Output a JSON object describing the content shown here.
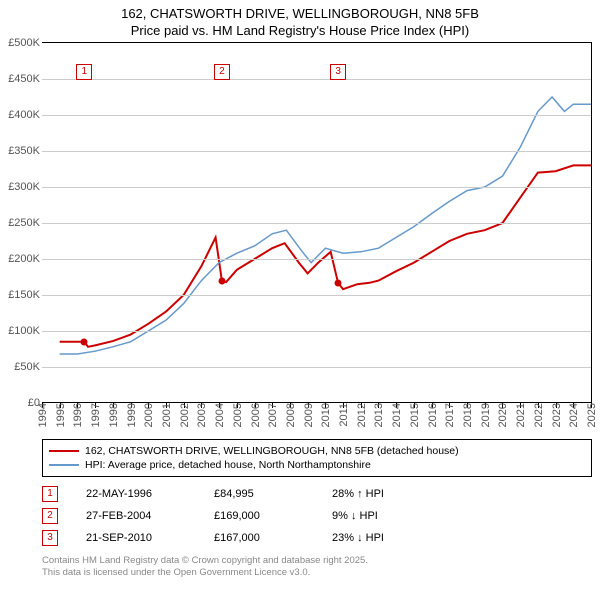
{
  "title_line1": "162, CHATSWORTH DRIVE, WELLINGBOROUGH, NN8 5FB",
  "title_line2": "Price paid vs. HM Land Registry's House Price Index (HPI)",
  "chart": {
    "type": "line",
    "background_color": "#ffffff",
    "grid_color": "#cccccc",
    "y": {
      "min": 0,
      "max": 500000,
      "ticks": [
        0,
        50000,
        100000,
        150000,
        200000,
        250000,
        300000,
        350000,
        400000,
        450000,
        500000
      ],
      "labels": [
        "£0",
        "£50K",
        "£100K",
        "£150K",
        "£200K",
        "£250K",
        "£300K",
        "£350K",
        "£400K",
        "£450K",
        "£500K"
      ],
      "label_fontsize": 11
    },
    "x": {
      "min": 1994,
      "max": 2025,
      "ticks": [
        1994,
        1995,
        1996,
        1997,
        1998,
        1999,
        2000,
        2001,
        2002,
        2003,
        2004,
        2005,
        2006,
        2007,
        2008,
        2009,
        2010,
        2011,
        2012,
        2013,
        2014,
        2015,
        2016,
        2017,
        2018,
        2019,
        2020,
        2021,
        2022,
        2023,
        2024,
        2025
      ],
      "label_fontsize": 11
    },
    "series": [
      {
        "name": "price_paid",
        "label": "162, CHATSWORTH DRIVE, WELLINGBOROUGH, NN8 5FB (detached house)",
        "color": "#cd0000",
        "line_width": 2,
        "data": [
          [
            1995.0,
            85000
          ],
          [
            1996.39,
            84995
          ],
          [
            1996.6,
            78000
          ],
          [
            1997.0,
            80000
          ],
          [
            1998.0,
            86000
          ],
          [
            1999.0,
            95000
          ],
          [
            2000.0,
            110000
          ],
          [
            2001.0,
            127000
          ],
          [
            2002.0,
            150000
          ],
          [
            2003.0,
            190000
          ],
          [
            2003.8,
            230000
          ],
          [
            2004.16,
            169000
          ],
          [
            2004.4,
            168000
          ],
          [
            2005.0,
            185000
          ],
          [
            2006.0,
            200000
          ],
          [
            2007.0,
            215000
          ],
          [
            2007.7,
            222000
          ],
          [
            2008.5,
            195000
          ],
          [
            2009.0,
            180000
          ],
          [
            2009.6,
            195000
          ],
          [
            2010.3,
            210000
          ],
          [
            2010.72,
            167000
          ],
          [
            2011.0,
            158000
          ],
          [
            2011.8,
            165000
          ],
          [
            2012.5,
            167000
          ],
          [
            2013.0,
            170000
          ],
          [
            2014.0,
            183000
          ],
          [
            2015.0,
            195000
          ],
          [
            2016.0,
            210000
          ],
          [
            2017.0,
            225000
          ],
          [
            2018.0,
            235000
          ],
          [
            2019.0,
            240000
          ],
          [
            2020.0,
            250000
          ],
          [
            2021.0,
            285000
          ],
          [
            2022.0,
            320000
          ],
          [
            2023.0,
            322000
          ],
          [
            2024.0,
            330000
          ],
          [
            2025.0,
            330000
          ]
        ]
      },
      {
        "name": "hpi",
        "label": "HPI: Average price, detached house, North Northamptonshire",
        "color": "#6699cc",
        "line_width": 1.5,
        "data": [
          [
            1995.0,
            68000
          ],
          [
            1996.0,
            68000
          ],
          [
            1997.0,
            72000
          ],
          [
            1998.0,
            78000
          ],
          [
            1999.0,
            85000
          ],
          [
            2000.0,
            100000
          ],
          [
            2001.0,
            115000
          ],
          [
            2002.0,
            138000
          ],
          [
            2003.0,
            170000
          ],
          [
            2004.0,
            195000
          ],
          [
            2005.0,
            208000
          ],
          [
            2006.0,
            218000
          ],
          [
            2007.0,
            235000
          ],
          [
            2007.8,
            240000
          ],
          [
            2008.7,
            210000
          ],
          [
            2009.2,
            195000
          ],
          [
            2010.0,
            215000
          ],
          [
            2011.0,
            208000
          ],
          [
            2012.0,
            210000
          ],
          [
            2013.0,
            215000
          ],
          [
            2014.0,
            230000
          ],
          [
            2015.0,
            245000
          ],
          [
            2016.0,
            263000
          ],
          [
            2017.0,
            280000
          ],
          [
            2018.0,
            295000
          ],
          [
            2019.0,
            300000
          ],
          [
            2020.0,
            315000
          ],
          [
            2021.0,
            355000
          ],
          [
            2022.0,
            405000
          ],
          [
            2022.8,
            425000
          ],
          [
            2023.5,
            405000
          ],
          [
            2024.0,
            415000
          ],
          [
            2025.0,
            415000
          ]
        ]
      }
    ],
    "markers": [
      {
        "n": "1",
        "year": 1996.39,
        "box_y": 460000,
        "dot_y": 84995
      },
      {
        "n": "2",
        "year": 2004.16,
        "box_y": 460000,
        "dot_y": 169000
      },
      {
        "n": "3",
        "year": 2010.72,
        "box_y": 460000,
        "dot_y": 167000
      }
    ],
    "marker_border_color": "#cd0000",
    "marker_dot_color": "#cd0000"
  },
  "legend": {
    "items": [
      {
        "color": "#cd0000",
        "width": 2,
        "label": "162, CHATSWORTH DRIVE, WELLINGBOROUGH, NN8 5FB (detached house)"
      },
      {
        "color": "#6699cc",
        "width": 2,
        "label": "HPI: Average price, detached house, North Northamptonshire"
      }
    ]
  },
  "sales": [
    {
      "n": "1",
      "date": "22-MAY-1996",
      "price": "£84,995",
      "diff": "28% ↑ HPI"
    },
    {
      "n": "2",
      "date": "27-FEB-2004",
      "price": "£169,000",
      "diff": "9% ↓ HPI"
    },
    {
      "n": "3",
      "date": "21-SEP-2010",
      "price": "£167,000",
      "diff": "23% ↓ HPI"
    }
  ],
  "footer_line1": "Contains HM Land Registry data © Crown copyright and database right 2025.",
  "footer_line2": "This data is licensed under the Open Government Licence v3.0."
}
